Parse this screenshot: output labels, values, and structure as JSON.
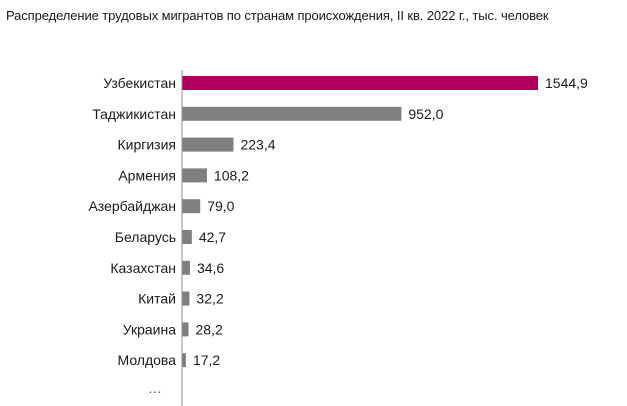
{
  "title": "Распределение трудовых мигрантов по странам происхождения, II кв. 2022 г., тыс. человек",
  "colors": {
    "highlight": "#b0005b",
    "bar": "#7f7f7f",
    "axis": "#8c8c8c",
    "text": "#1a1a1a"
  },
  "chart_data": {
    "type": "bar",
    "orientation": "horizontal",
    "title": "Распределение трудовых мигрантов по странам происхождения, II кв. 2022 г., тыс. человек",
    "categories": [
      "Узбекистан",
      "Таджикистан",
      "Киргизия",
      "Армения",
      "Азербайджан",
      "Беларусь",
      "Казахстан",
      "Китай",
      "Украина",
      "Молдова"
    ],
    "values": [
      1544.9,
      952.0,
      223.4,
      108.2,
      79.0,
      42.7,
      34.6,
      32.2,
      28.2,
      17.2
    ],
    "value_labels": [
      "1544,9",
      "952,0",
      "223,4",
      "108,2",
      "79,0",
      "42,7",
      "34,6",
      "32,2",
      "28,2",
      "17,2"
    ],
    "highlight_index": 0,
    "trailing_label": "…",
    "xlim": [
      0,
      1544.9
    ],
    "grid": false,
    "legend": "none"
  }
}
